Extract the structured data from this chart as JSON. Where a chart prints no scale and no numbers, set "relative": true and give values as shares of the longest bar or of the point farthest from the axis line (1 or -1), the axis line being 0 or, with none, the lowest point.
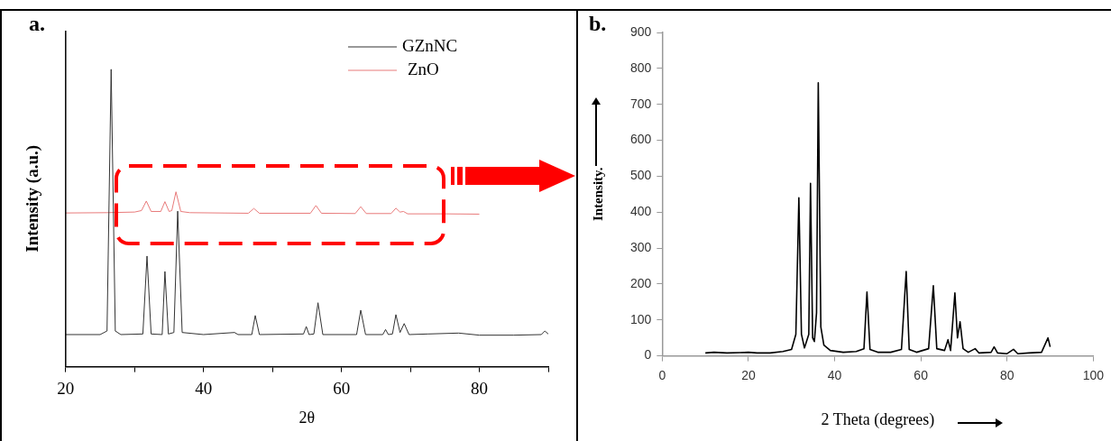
{
  "chart_data": [
    {
      "type": "line",
      "relative": true,
      "xlabel": "2θ",
      "ylabel": "Intensity (a.u.)",
      "annotations": [
        "a."
      ],
      "legend": "top right",
      "xlim": [
        20,
        90
      ],
      "xticks": [
        20,
        {
          "value": 30,
          "label": null
        },
        40,
        {
          "value": 50,
          "label": null
        },
        60,
        {
          "value": 70,
          "label": null
        },
        80,
        {
          "value": 90,
          "label": null
        }
      ],
      "series": [
        {
          "name": "GZnNC",
          "color": "#333333",
          "x": [
            20,
            25,
            26.0,
            26.6,
            27.2,
            28,
            31.2,
            31.8,
            32.4,
            34.0,
            34.4,
            34.9,
            35.7,
            36.25,
            36.9,
            40,
            44.5,
            45,
            47.0,
            47.5,
            48.1,
            54.5,
            54.9,
            55.3,
            56.0,
            56.6,
            57.3,
            62.2,
            62.8,
            63.5,
            66.0,
            66.4,
            66.8,
            67.4,
            67.9,
            68.5,
            69.1,
            69.8,
            72.5,
            77,
            80,
            85,
            89.0,
            89.5,
            90
          ],
          "values": [
            0.108,
            0.108,
            0.12,
            1.0,
            0.12,
            0.108,
            0.11,
            0.372,
            0.11,
            0.108,
            0.32,
            0.11,
            0.115,
            0.523,
            0.115,
            0.108,
            0.115,
            0.108,
            0.108,
            0.172,
            0.108,
            0.11,
            0.135,
            0.108,
            0.11,
            0.215,
            0.108,
            0.108,
            0.19,
            0.108,
            0.108,
            0.125,
            0.108,
            0.11,
            0.175,
            0.115,
            0.145,
            0.108,
            0.11,
            0.113,
            0.106,
            0.106,
            0.108,
            0.12,
            0.11
          ]
        },
        {
          "name": "ZnO",
          "color": "#e87a7a",
          "x": [
            20,
            26,
            30,
            31.0,
            31.7,
            32.4,
            33.8,
            34.4,
            35.0,
            35.4,
            36.0,
            36.7,
            38,
            46.5,
            47.3,
            48.1,
            55.5,
            56.3,
            57.1,
            62.0,
            62.8,
            63.6,
            67.2,
            67.9,
            68.5,
            69.0,
            69.6,
            75,
            80
          ],
          "values": [
            0.517,
            0.518,
            0.52,
            0.525,
            0.557,
            0.522,
            0.522,
            0.555,
            0.522,
            0.525,
            0.588,
            0.522,
            0.518,
            0.516,
            0.532,
            0.516,
            0.516,
            0.542,
            0.516,
            0.515,
            0.538,
            0.515,
            0.515,
            0.533,
            0.52,
            0.522,
            0.514,
            0.514,
            0.513
          ]
        }
      ]
    },
    {
      "type": "line",
      "xlabel": "2 Theta (degrees)",
      "ylabel": "Intensity.",
      "annotations": [
        "b."
      ],
      "xlim": [
        0,
        100
      ],
      "xticks": [
        0,
        20,
        40,
        60,
        80,
        100
      ],
      "ylim": [
        0,
        900
      ],
      "yticks": [
        0,
        100,
        200,
        300,
        400,
        500,
        600,
        700,
        800,
        900
      ],
      "series": [
        {
          "color": "#000000",
          "x": [
            10,
            12,
            15,
            18,
            20,
            22,
            25,
            28,
            30,
            31.0,
            31.7,
            32.3,
            33,
            34.0,
            34.4,
            34.9,
            35.3,
            35.8,
            36.2,
            36.8,
            37.5,
            39,
            42,
            45,
            46.8,
            47.5,
            48.2,
            50,
            53,
            55.5,
            56.6,
            57.3,
            59,
            61.8,
            62.9,
            63.7,
            65.5,
            66.3,
            66.9,
            67.9,
            68.5,
            69.1,
            69.8,
            71,
            72.6,
            73.5,
            76.3,
            77,
            77.8,
            80,
            81.5,
            82.5,
            85,
            88,
            89.5,
            90
          ],
          "values": [
            8,
            10,
            8,
            9,
            10,
            8,
            8,
            12,
            18,
            60,
            440,
            60,
            22,
            60,
            480,
            50,
            40,
            120,
            760,
            80,
            30,
            15,
            10,
            12,
            20,
            178,
            18,
            10,
            10,
            18,
            235,
            18,
            10,
            20,
            195,
            20,
            15,
            45,
            15,
            175,
            50,
            95,
            20,
            10,
            20,
            8,
            10,
            25,
            8,
            6,
            18,
            6,
            8,
            10,
            50,
            25
          ]
        }
      ]
    }
  ]
}
